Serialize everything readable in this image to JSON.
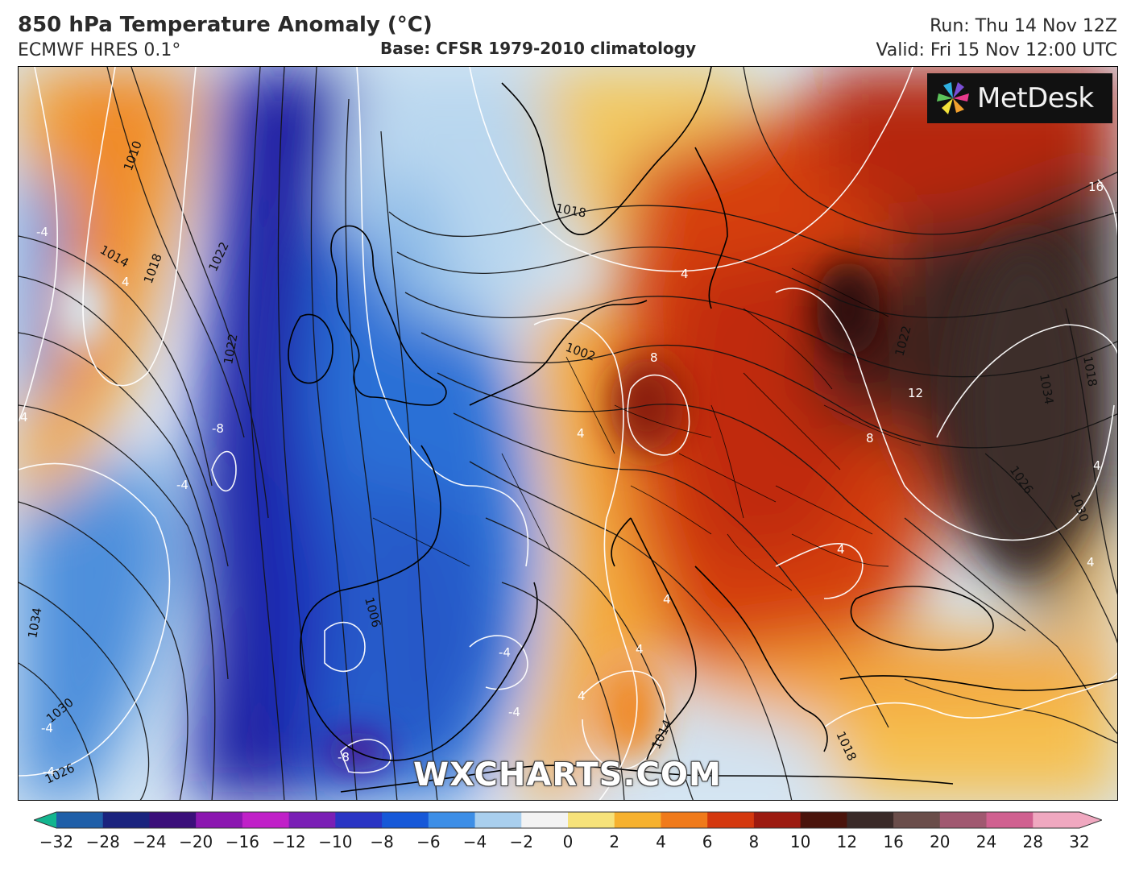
{
  "header": {
    "title": "850 hPa Temperature Anomaly (°C)",
    "subtitle": "ECMWF HRES 0.1°",
    "base": "Base: CFSR 1979-2010 climatology",
    "run": "Run: Thu 14 Nov 12Z",
    "valid": "Valid: Fri 15 Nov 12:00 UTC"
  },
  "logo": {
    "text": "MetDesk",
    "icon": "pinwheel-icon"
  },
  "watermark": "WXCHARTS.COM",
  "colorbar": {
    "ticks": [
      "−32",
      "−28",
      "−24",
      "−20",
      "−16",
      "−12",
      "−10",
      "−8",
      "−6",
      "−4",
      "−2",
      "0",
      "2",
      "4",
      "6",
      "8",
      "10",
      "12",
      "16",
      "20",
      "24",
      "28",
      "32"
    ],
    "colors": [
      "#13b58f",
      "#1f5fa8",
      "#1a237e",
      "#3b0f7a",
      "#8b16b0",
      "#c020c8",
      "#7a1fb5",
      "#2a34c4",
      "#1658d8",
      "#3d8ee6",
      "#a9cfee",
      "#f3f3f3",
      "#f6e27a",
      "#f6b12e",
      "#f07a1a",
      "#d4380e",
      "#9c1a10",
      "#4a140c",
      "#3a2a28",
      "#6a4d4a",
      "#a05870",
      "#d06090",
      "#f0a8c0"
    ]
  },
  "contour_labels": {
    "isobars": [
      "1010",
      "1014",
      "1018",
      "1022",
      "1022",
      "1034",
      "1030",
      "1026",
      "1006",
      "1002",
      "1018",
      "1014",
      "1018",
      "1022",
      "1034",
      "1030",
      "1026",
      "1018"
    ],
    "anomaly": [
      "-4",
      "4",
      "4",
      "-8",
      "-4",
      "-4",
      "-4",
      "-8",
      "-4",
      "-4",
      "4",
      "8",
      "4",
      "4",
      "4",
      "4",
      "4",
      "12",
      "8",
      "16",
      "4",
      "4"
    ]
  }
}
